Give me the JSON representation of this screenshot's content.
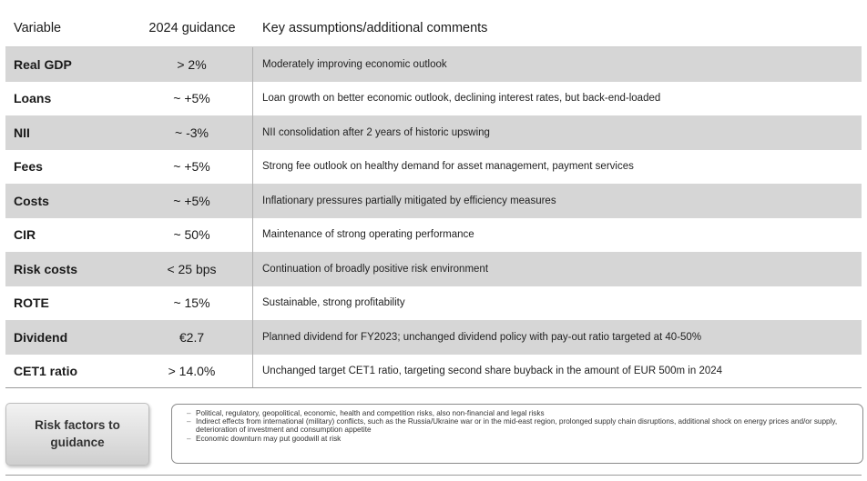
{
  "table": {
    "headers": {
      "variable": "Variable",
      "guidance": "2024 guidance",
      "comments": "Key assumptions/additional comments"
    },
    "rows": [
      {
        "variable": "Real GDP",
        "guidance": "> 2%",
        "comment": "Moderately improving economic outlook"
      },
      {
        "variable": "Loans",
        "guidance": "~ +5%",
        "comment": "Loan growth on better economic outlook, declining interest rates, but back-end-loaded"
      },
      {
        "variable": "NII",
        "guidance": "~ -3%",
        "comment": "NII consolidation after 2 years of historic upswing"
      },
      {
        "variable": "Fees",
        "guidance": "~ +5%",
        "comment": "Strong fee outlook on healthy demand for asset management, payment services"
      },
      {
        "variable": "Costs",
        "guidance": "~ +5%",
        "comment": "Inflationary pressures partially mitigated by efficiency measures"
      },
      {
        "variable": "CIR",
        "guidance": "~ 50%",
        "comment": "Maintenance of strong operating performance"
      },
      {
        "variable": "Risk costs",
        "guidance": "< 25 bps",
        "comment": "Continuation of broadly positive risk environment"
      },
      {
        "variable": "ROTE",
        "guidance": "~ 15%",
        "comment": "Sustainable, strong profitability"
      },
      {
        "variable": "Dividend",
        "guidance": "€2.7",
        "comment": "Planned dividend for FY2023; unchanged dividend policy with pay-out ratio targeted at 40-50%"
      },
      {
        "variable": "CET1 ratio",
        "guidance": "> 14.0%",
        "comment": "Unchanged target CET1 ratio, targeting second share buyback in the amount of EUR 500m in 2024"
      }
    ]
  },
  "risk": {
    "button_label": "Risk factors to\nguidance",
    "bullet_marker": "–",
    "items": [
      "Political, regulatory, geopolitical, economic, health and competition risks, also non-financial and legal risks",
      "Indirect effects from international (military) conflicts, such as the Russia/Ukraine war or in the mid-east region, prolonged supply chain disruptions, additional shock on energy prices and/or supply, deterioration of investment and consumption appetite",
      "Economic downturn may put goodwill at risk"
    ]
  },
  "colors": {
    "shaded_row": "#d6d6d6",
    "text": "#1a1a1a"
  }
}
